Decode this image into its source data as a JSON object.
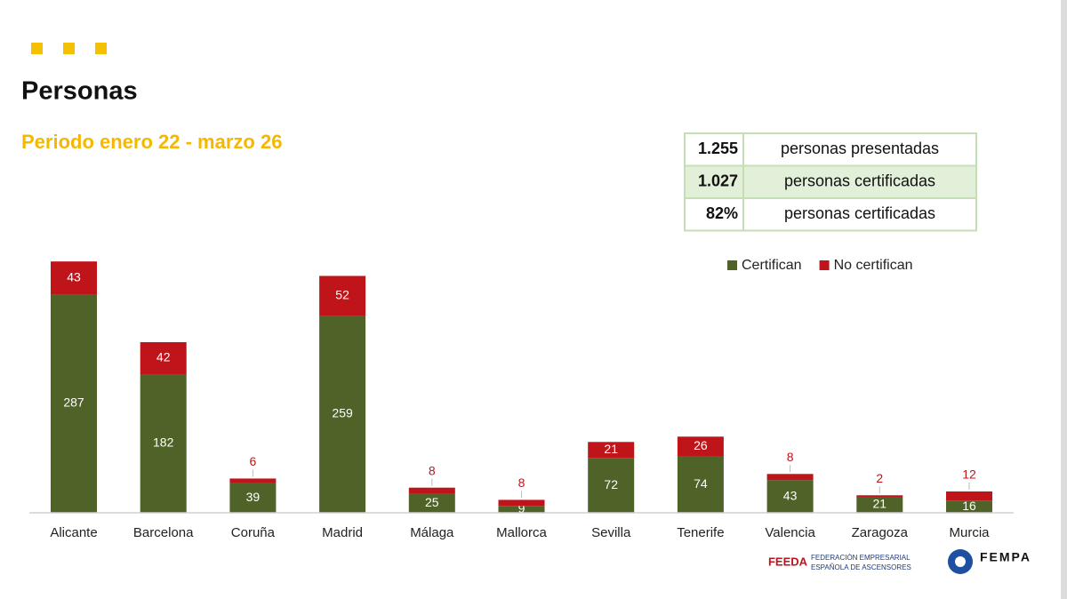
{
  "chart_data": {
    "type": "stacked_bar",
    "title": "Personas",
    "subtitle": "Periodo enero 22 - marzo 26",
    "categories": [
      "Alicante",
      "Barcelona",
      "Coruña",
      "Madrid",
      "Málaga",
      "Mallorca",
      "Sevilla",
      "Tenerife",
      "Valencia",
      "Zaragoza",
      "Murcia"
    ],
    "series": [
      {
        "name": "Certifican",
        "color": "#4f6228",
        "values": [
          287,
          182,
          39,
          259,
          25,
          9,
          72,
          74,
          43,
          21,
          16
        ]
      },
      {
        "name": "No certifican",
        "color": "#c0141b",
        "values": [
          43,
          42,
          6,
          52,
          8,
          8,
          21,
          26,
          8,
          2,
          12
        ]
      }
    ],
    "legend": "top-right"
  },
  "table": {
    "rows": [
      [
        "1.255",
        "personas presentadas"
      ],
      [
        "1.027",
        "personas certificadas"
      ],
      [
        "82%",
        "personas certificadas"
      ]
    ]
  },
  "logos": {
    "feeda": "FEEDA",
    "feeda_line1": "FEDERACIÓN EMPRESARIAL",
    "feeda_line2": "ESPAÑOLA DE ASCENSORES",
    "fempa": "FEMPA"
  }
}
